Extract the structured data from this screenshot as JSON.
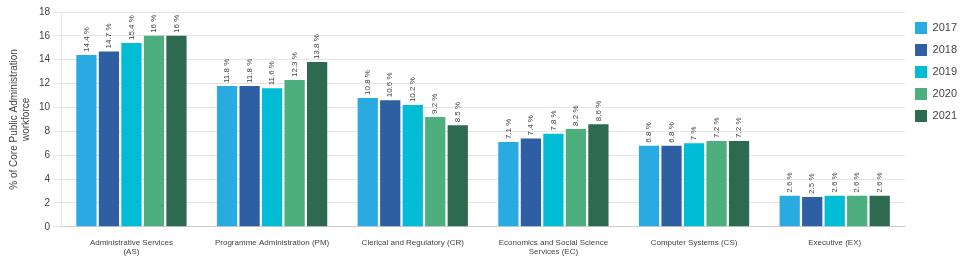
{
  "chart_data": {
    "type": "bar",
    "categories": [
      "Administrative Services\n(AS)",
      "Programme Administration (PM)",
      "Clerical and Regulatory (CR)",
      "Economics and Social Science\nServices (EC)",
      "Computer Systems (CS)",
      "Executive (EX)"
    ],
    "series": [
      {
        "name": "2017",
        "color": "#29abe2",
        "values": [
          14.4,
          11.8,
          10.8,
          7.1,
          6.8,
          2.6
        ],
        "value_labels": [
          "14.4 %",
          "11.8 %",
          "10.8 %",
          "7.1 %",
          "6.8 %",
          "2.6 %"
        ]
      },
      {
        "name": "2018",
        "color": "#2e5fa3",
        "values": [
          14.7,
          11.8,
          10.6,
          7.4,
          6.8,
          2.5
        ],
        "value_labels": [
          "14.7 %",
          "11.8 %",
          "10.6 %",
          "7.4 %",
          "6.8 %",
          "2.5 %"
        ]
      },
      {
        "name": "2019",
        "color": "#00bcd4",
        "values": [
          15.4,
          11.6,
          10.2,
          7.8,
          7.0,
          2.6
        ],
        "value_labels": [
          "15.4 %",
          "11.6 %",
          "10.2 %",
          "7.8 %",
          "7 %",
          "2.6 %"
        ]
      },
      {
        "name": "2020",
        "color": "#4caf7d",
        "values": [
          16.0,
          12.3,
          9.2,
          8.2,
          7.2,
          2.6
        ],
        "value_labels": [
          "16 %",
          "12.3 %",
          "9.2 %",
          "8.2 %",
          "7.2 %",
          "2.6 %"
        ]
      },
      {
        "name": "2021",
        "color": "#2d6a4f",
        "values": [
          16.0,
          13.8,
          8.5,
          8.6,
          7.2,
          2.6
        ],
        "value_labels": [
          "16 %",
          "13.8 %",
          "8.5 %",
          "8.6 %",
          "7.2 %",
          "2.6 %"
        ]
      }
    ],
    "ylabel": "% of Core Public Administration\nworkforce",
    "ylim": [
      0,
      18
    ],
    "yticks": [
      0,
      2,
      4,
      6,
      8,
      10,
      12,
      14,
      16,
      18
    ],
    "grid": true,
    "legend": "upper right",
    "data_labels": true
  }
}
